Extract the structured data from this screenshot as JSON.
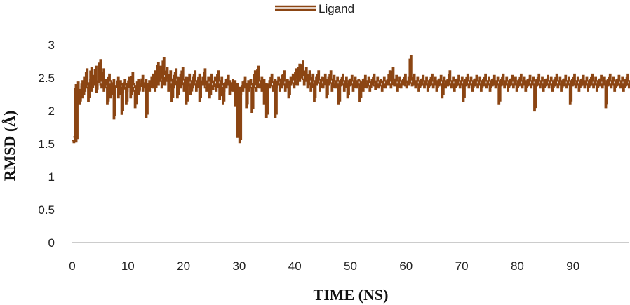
{
  "chart_data": {
    "type": "line",
    "title": "",
    "xlabel": "TIME (NS)",
    "ylabel": "RMSD (Å)",
    "xlim": [
      0,
      100
    ],
    "ylim": [
      0,
      3
    ],
    "xticks": [
      0,
      10,
      20,
      30,
      40,
      50,
      60,
      70,
      80,
      90
    ],
    "yticks": [
      0,
      0.5,
      1,
      1.5,
      2,
      2.5,
      3
    ],
    "ytick_labels": [
      "0",
      "0.5",
      "1",
      "1.5",
      "2",
      "2.5",
      "3"
    ],
    "grid": false,
    "legend": {
      "position": "top-center"
    },
    "series": [
      {
        "name": "Ligand",
        "color": "#8B4513",
        "step": 0.2,
        "values": [
          1.55,
          1.52,
          2.34,
          1.53,
          2.38,
          2.25,
          2.1,
          2.32,
          2.4,
          2.2,
          2.45,
          2.3,
          2.58,
          2.35,
          2.15,
          2.42,
          2.6,
          2.3,
          2.48,
          2.4,
          2.62,
          2.28,
          2.38,
          2.45,
          2.72,
          2.4,
          2.35,
          2.58,
          2.3,
          2.42,
          2.35,
          2.1,
          2.5,
          2.4,
          2.2,
          2.35,
          2.42,
          1.88,
          2.3,
          2.38,
          2.45,
          2.2,
          2.4,
          2.35,
          1.95,
          2.28,
          2.42,
          2.35,
          2.1,
          2.3,
          2.45,
          2.4,
          2.2,
          2.52,
          2.35,
          2.3,
          2.05,
          2.38,
          2.42,
          2.25,
          2.32,
          2.4,
          2.48,
          2.3,
          2.35,
          2.42,
          1.9,
          2.35,
          2.4,
          2.3,
          2.45,
          2.5,
          2.35,
          2.55,
          2.3,
          2.42,
          2.68,
          2.4,
          2.62,
          2.45,
          2.35,
          2.75,
          2.5,
          2.4,
          2.6,
          2.45,
          2.3,
          2.55,
          2.4,
          2.15,
          2.48,
          2.35,
          2.58,
          2.45,
          2.2,
          2.4,
          2.5,
          2.35,
          2.6,
          2.42,
          2.3,
          2.45,
          2.1,
          2.38,
          2.5,
          2.4,
          2.25,
          2.45,
          2.35,
          2.55,
          2.4,
          2.3,
          2.42,
          2.5,
          2.15,
          2.35,
          2.45,
          2.4,
          2.58,
          2.35,
          2.3,
          2.45,
          2.4,
          2.2,
          2.5,
          2.38,
          2.32,
          2.45,
          2.4,
          2.3,
          2.55,
          2.4,
          2.18,
          2.45,
          2.35,
          2.1,
          2.3,
          2.42,
          2.35,
          2.48,
          2.4,
          2.25,
          2.35,
          2.42,
          2.3,
          2.4,
          2.08,
          2.35,
          1.6,
          2.3,
          1.52,
          2.25,
          2.38,
          2.3,
          2.45,
          2.35,
          2.05,
          2.4,
          2.3,
          2.42,
          2.35,
          1.98,
          2.4,
          2.55,
          2.35,
          2.3,
          2.62,
          2.4,
          2.35,
          2.45,
          2.3,
          2.42,
          2.1,
          2.35,
          1.9,
          2.3,
          2.4,
          2.35,
          2.5,
          2.38,
          2.3,
          2.42,
          1.9,
          2.35,
          2.45,
          2.4,
          2.3,
          2.48,
          2.35,
          2.55,
          2.4,
          2.3,
          2.42,
          2.35,
          2.2,
          2.45,
          2.4,
          2.5,
          2.42,
          2.35,
          2.58,
          2.45,
          2.4,
          2.65,
          2.45,
          2.52,
          2.7,
          2.48,
          2.4,
          2.6,
          2.45,
          2.35,
          2.55,
          2.42,
          2.3,
          2.5,
          2.4,
          2.15,
          2.45,
          2.4,
          2.55,
          2.42,
          2.3,
          2.45,
          2.4,
          2.35,
          2.5,
          2.42,
          2.2,
          2.45,
          2.4,
          2.55,
          2.42,
          2.3,
          2.48,
          2.4,
          2.35,
          2.45,
          2.4,
          2.1,
          2.42,
          2.38,
          2.5,
          2.4,
          2.3,
          2.45,
          2.4,
          2.2,
          2.42,
          2.38,
          2.48,
          2.4,
          2.3,
          2.45,
          2.4,
          2.35,
          2.42,
          2.4,
          2.15,
          2.38,
          2.42,
          2.3,
          2.48,
          2.4,
          2.35,
          2.45,
          2.38,
          2.3,
          2.42,
          2.4,
          2.5,
          2.38,
          2.32,
          2.45,
          2.4,
          2.35,
          2.42,
          2.38,
          2.3,
          2.45,
          2.4,
          2.35,
          2.42,
          2.4,
          2.55,
          2.4,
          2.35,
          2.6,
          2.42,
          2.38,
          2.48,
          2.4,
          2.3,
          2.45,
          2.4,
          2.35,
          2.42,
          2.4,
          2.5,
          2.38,
          2.35,
          2.45,
          2.4,
          2.78,
          2.42,
          2.38,
          2.5,
          2.4,
          2.35,
          2.45,
          2.4,
          2.3,
          2.42,
          2.38,
          2.48,
          2.4,
          2.35,
          2.45,
          2.4,
          2.3,
          2.42,
          2.38,
          2.5,
          2.4,
          2.35,
          2.45,
          2.4,
          2.3,
          2.42,
          2.38,
          2.48,
          2.4,
          2.2,
          2.45,
          2.4,
          2.35,
          2.42,
          2.38,
          2.55,
          2.4,
          2.35,
          2.45,
          2.4,
          2.3,
          2.42,
          2.38,
          2.48,
          2.4,
          2.35,
          2.45,
          2.4,
          2.15,
          2.42,
          2.38,
          2.5,
          2.4,
          2.35,
          2.45,
          2.4,
          2.3,
          2.42,
          2.38,
          2.48,
          2.4,
          2.35,
          2.45,
          2.4,
          2.3,
          2.42,
          2.38,
          2.5,
          2.4,
          2.35,
          2.45,
          2.4,
          2.3,
          2.42,
          2.38,
          2.48,
          2.4,
          2.35,
          2.45,
          2.4,
          2.1,
          2.42,
          2.38,
          2.5,
          2.4,
          2.35,
          2.45,
          2.4,
          2.3,
          2.42,
          2.38,
          2.48,
          2.4,
          2.35,
          2.45,
          2.4,
          2.3,
          2.42,
          2.38,
          2.5,
          2.4,
          2.35,
          2.45,
          2.4,
          2.3,
          2.42,
          2.38,
          2.48,
          2.4,
          2.35,
          2.45,
          2.4,
          2.0,
          2.42,
          2.38,
          2.5,
          2.4,
          2.35,
          2.45,
          2.4,
          2.3,
          2.42,
          2.38,
          2.48,
          2.4,
          2.35,
          2.45,
          2.4,
          2.3,
          2.42,
          2.38,
          2.5,
          2.4,
          2.35,
          2.45,
          2.4,
          2.3,
          2.42,
          2.38,
          2.48,
          2.4,
          2.35,
          2.45,
          2.4,
          2.1,
          2.42,
          2.38,
          2.5,
          2.4,
          2.35,
          2.45,
          2.4,
          2.3,
          2.42,
          2.38,
          2.48,
          2.4,
          2.35,
          2.45,
          2.4,
          2.3,
          2.42,
          2.38,
          2.5,
          2.4,
          2.35,
          2.45,
          2.4,
          2.3,
          2.42,
          2.38,
          2.48,
          2.4,
          2.35,
          2.45,
          2.4,
          2.05,
          2.42,
          2.38,
          2.5,
          2.4,
          2.35,
          2.45,
          2.4,
          2.3,
          2.42,
          2.38,
          2.48,
          2.4,
          2.35,
          2.45,
          2.4,
          2.3,
          2.42,
          2.38,
          2.5,
          2.4,
          2.35,
          2.45,
          2.4,
          2.3,
          2.42,
          2.38,
          2.48,
          2.4,
          2.35,
          2.45,
          2.4,
          2.15,
          2.42,
          2.38,
          2.5,
          2.4,
          2.35,
          2.45,
          2.4,
          2.3,
          2.42,
          2.38,
          2.48,
          2.4,
          2.35,
          2.45,
          2.4,
          2.3,
          2.42,
          2.38,
          2.5,
          2.4,
          2.35,
          2.45,
          2.4,
          2.3,
          2.42,
          2.38,
          2.48,
          2.4,
          2.35,
          2.45,
          2.4,
          2.1,
          2.42,
          2.38,
          2.5,
          2.4,
          2.35,
          2.45,
          2.4,
          2.3,
          2.42,
          2.38,
          2.48,
          2.4,
          2.35,
          2.45,
          2.4,
          2.3,
          2.42,
          2.38,
          2.5,
          2.4,
          2.35,
          2.45,
          2.4,
          2.3,
          2.42,
          2.38,
          2.48,
          2.4,
          2.35,
          2.45,
          2.4,
          2.2,
          2.42,
          2.38,
          2.5,
          2.4,
          2.35,
          2.45,
          2.4,
          2.3,
          2.42,
          2.38,
          2.48,
          2.4,
          2.35,
          2.45,
          2.4,
          2.3,
          2.42,
          2.38,
          2.5,
          2.4,
          2.35,
          2.45,
          2.4,
          2.3,
          2.42,
          2.38,
          2.48,
          2.4,
          2.35,
          2.45,
          2.4,
          2.05,
          2.42,
          2.38,
          2.5,
          2.4,
          2.35,
          2.45,
          2.4,
          2.3,
          2.42,
          2.38,
          2.48,
          2.4,
          2.35,
          2.45,
          2.4,
          2.3,
          2.42,
          2.38,
          2.5,
          2.4,
          2.35,
          2.45,
          2.4,
          2.3,
          2.42,
          2.38,
          2.48,
          2.4,
          2.35,
          2.45,
          2.4,
          2.15,
          2.42,
          2.38,
          2.5,
          2.4,
          2.35,
          2.45,
          2.4,
          2.3,
          2.42,
          2.38,
          2.48,
          2.4,
          2.35,
          2.45,
          2.4,
          2.3,
          2.42,
          2.38,
          2.5,
          2.4,
          2.35,
          2.45,
          2.4,
          2.3,
          2.42,
          2.38,
          2.48,
          2.4,
          2.35,
          2.45,
          2.4,
          2.0,
          2.42,
          2.38,
          2.5,
          2.4,
          2.35,
          2.45,
          2.4,
          2.3,
          2.42,
          2.38,
          2.48,
          2.4,
          2.35,
          2.45,
          2.4,
          2.3,
          2.42,
          2.38,
          2.5,
          2.4,
          2.35,
          2.45,
          2.4,
          2.3,
          2.42,
          2.38,
          2.48,
          2.4,
          2.35,
          2.45,
          2.4,
          2.1,
          2.42,
          2.38,
          2.5,
          2.4,
          2.35,
          2.45,
          2.4,
          2.3,
          2.42,
          2.38,
          2.48,
          2.4,
          2.35,
          2.45,
          2.4,
          2.3,
          2.42,
          2.38,
          2.5,
          2.4,
          2.35,
          2.45,
          2.4,
          2.3,
          2.42,
          2.38,
          2.48,
          2.4,
          2.35,
          2.45,
          2.4,
          2.1,
          2.42,
          2.38,
          2.5,
          2.4,
          2.35,
          2.45,
          2.4,
          2.3,
          2.42,
          2.38,
          2.48,
          2.4,
          2.35,
          2.45,
          2.4,
          2.3,
          2.42,
          2.38,
          2.5,
          2.4,
          2.35,
          2.45,
          2.4,
          2.3,
          2.42,
          2.38,
          2.48,
          2.4,
          2.35,
          2.45,
          2.4,
          2.1,
          2.42,
          2.38,
          2.5,
          2.4,
          2.35,
          2.45,
          2.4,
          2.3,
          2.42,
          2.38,
          2.48,
          2.4,
          2.35,
          2.45,
          2.4,
          2.3,
          2.42,
          2.38,
          2.5,
          2.4,
          2.35,
          2.45,
          2.4,
          2.3,
          2.42,
          2.38,
          2.48,
          2.4,
          2.35,
          2.45,
          2.4,
          2.2,
          2.42,
          2.38,
          2.5,
          2.4,
          2.35,
          2.45,
          2.4,
          2.3,
          2.42,
          2.38,
          2.48,
          2.4,
          2.35,
          2.45,
          2.4,
          2.3,
          2.42,
          2.38,
          2.5,
          2.4,
          2.35,
          2.45,
          2.4,
          2.3,
          2.42,
          2.38,
          2.48,
          2.4,
          2.35,
          2.45,
          2.4,
          2.05,
          2.42,
          2.38,
          2.5,
          2.4,
          2.35,
          2.45,
          2.4,
          2.3,
          2.42,
          2.38,
          2.48,
          2.4,
          2.35,
          2.45,
          2.4,
          2.3,
          2.42,
          2.38,
          2.5,
          2.4,
          2.35,
          2.45,
          2.4,
          2.3,
          2.42,
          2.38,
          2.48,
          2.4,
          2.35,
          2.45,
          2.4,
          2.75,
          2.62,
          2.55,
          2.7,
          2.45,
          2.4,
          2.3,
          2.15,
          2.38,
          2.42,
          2.3,
          2.2,
          2.45,
          2.4,
          2.35,
          2.25,
          2.42,
          2.38,
          2.3,
          2.45,
          2.1,
          2.4,
          2.35,
          2.5,
          2.3,
          2.42,
          2.38,
          2.45,
          2.3,
          2.48
        ]
      }
    ]
  }
}
